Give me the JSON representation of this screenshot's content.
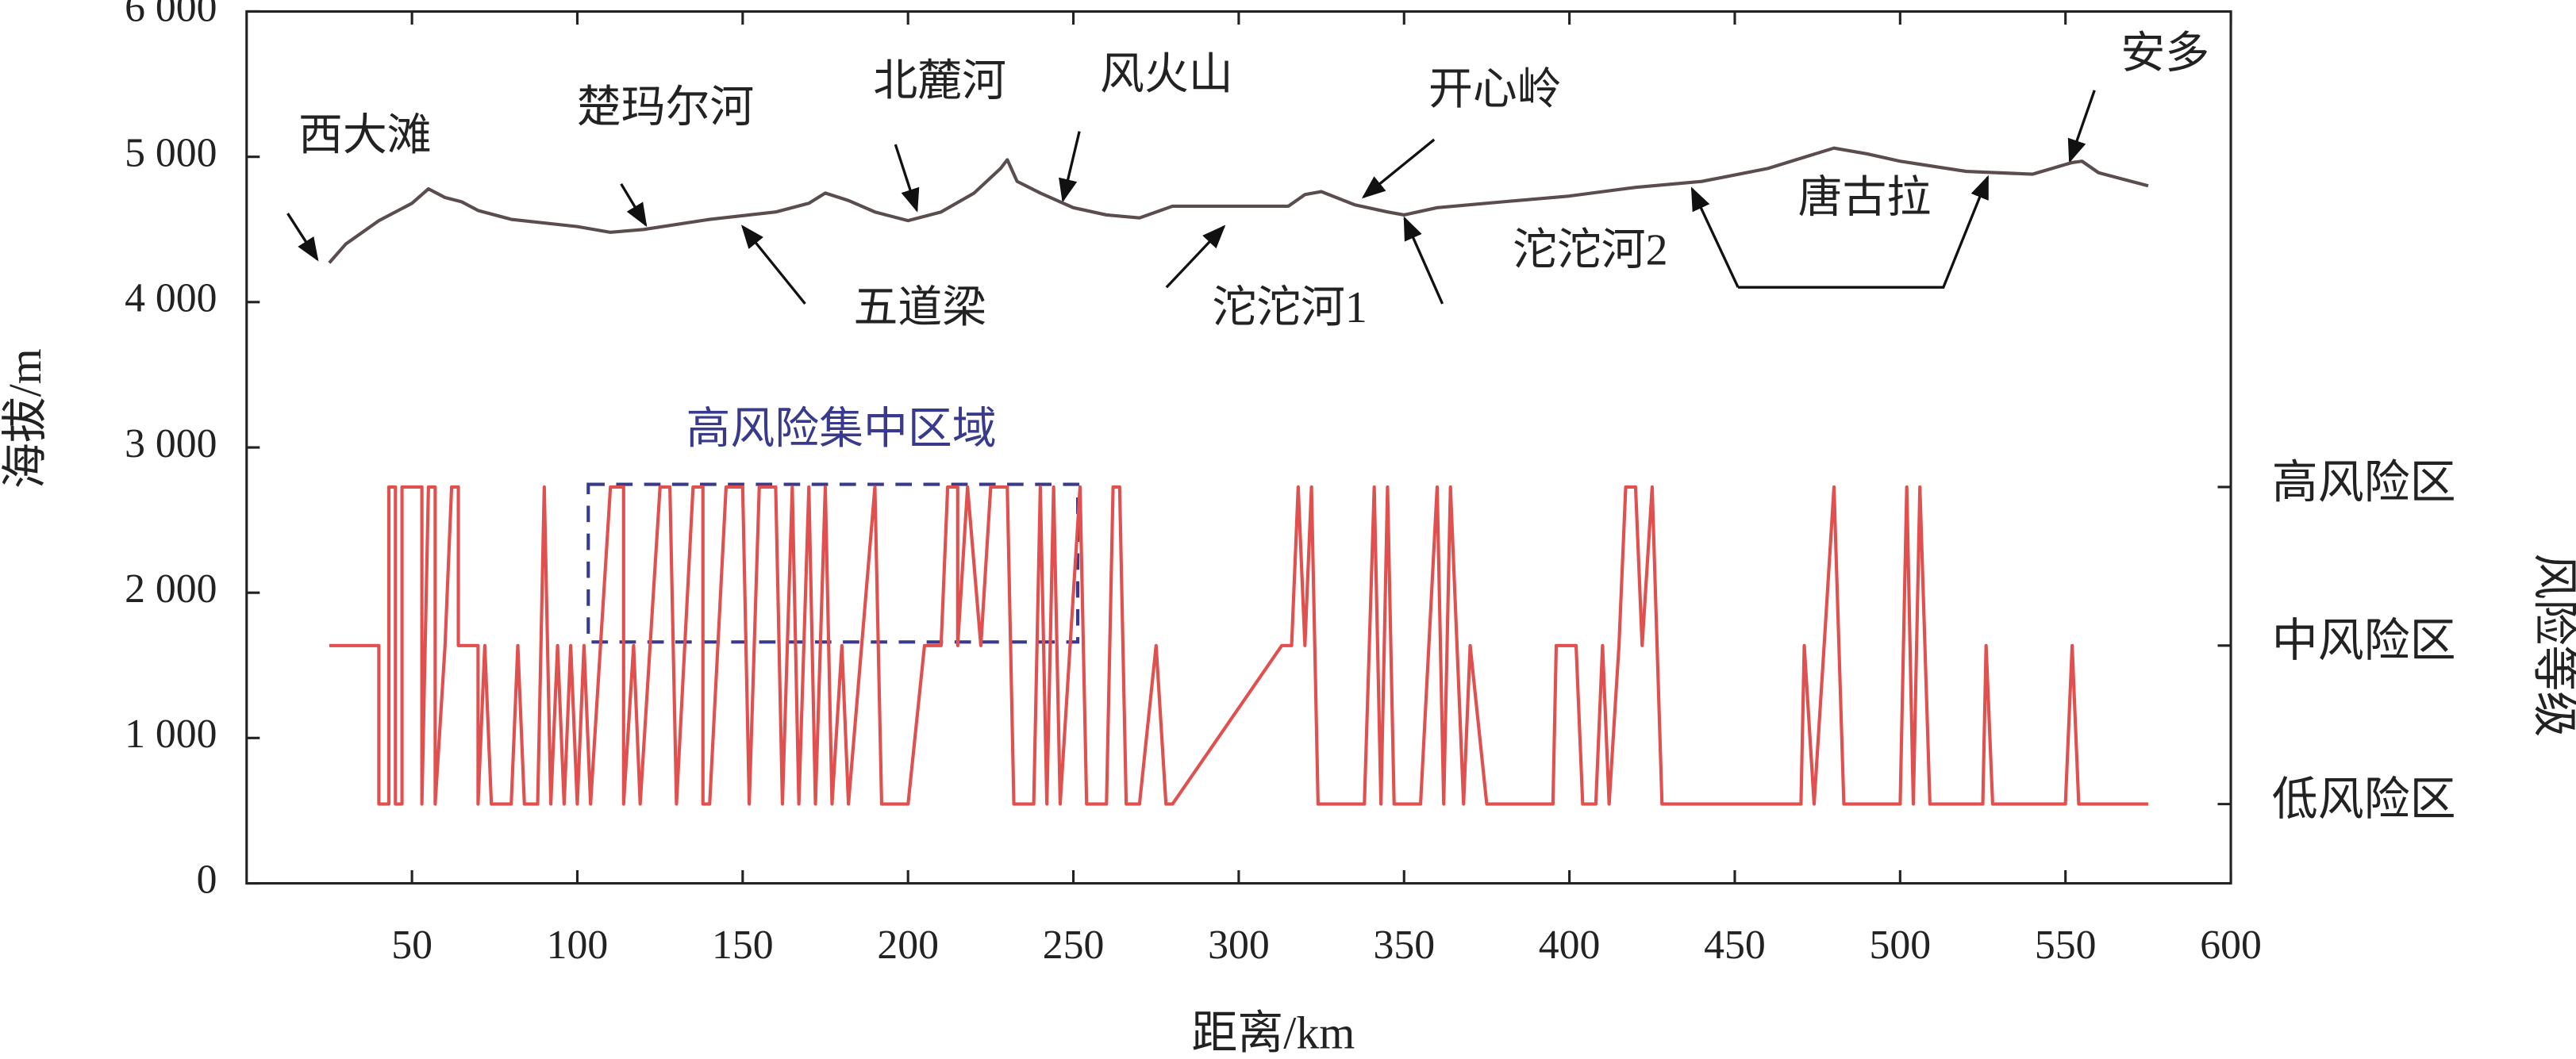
{
  "chart_data": {
    "type": "line",
    "xlabel": "距离/km",
    "ylabel": "海拔/m",
    "y2label": "风险等级",
    "xlim": [
      0,
      600
    ],
    "xticks": [
      50,
      100,
      150,
      200,
      250,
      300,
      350,
      400,
      450,
      500,
      550,
      600
    ],
    "ylim": [
      0,
      6000
    ],
    "yticks": [
      0,
      {
        "value": 1000,
        "label": "1 000"
      },
      {
        "value": 2000,
        "label": "2 000"
      },
      {
        "value": 3000,
        "label": "3 000"
      },
      {
        "value": 4000,
        "label": "4 000"
      },
      {
        "value": 5000,
        "label": "5 000"
      },
      {
        "value": 6000,
        "label": "6 000"
      }
    ],
    "y2lim": [
      0.5,
      6
    ],
    "y2ticks": [
      {
        "value": 1,
        "label": "低风险区"
      },
      {
        "value": 2,
        "label": "中风险区"
      },
      {
        "value": 3,
        "label": "高风险区"
      }
    ],
    "annotations": [
      "西大滩",
      "楚玛尔河",
      "北麓河",
      "风火山",
      "开心岭",
      "安多",
      "五道梁",
      "沱沱河1",
      "沱沱河2",
      "唐古拉",
      "高风险集中区域"
    ],
    "series": [
      {
        "color": "#5a4d4d",
        "x": [
          25,
          30,
          40,
          50,
          55,
          60,
          65,
          70,
          80,
          100,
          110,
          120,
          140,
          160,
          170,
          175,
          182,
          190,
          200,
          210,
          220,
          228,
          230,
          233,
          240,
          250,
          260,
          270,
          280,
          315,
          320,
          325,
          335,
          345,
          350,
          360,
          380,
          400,
          420,
          440,
          460,
          480,
          490,
          500,
          520,
          540,
          552,
          555,
          560,
          575
        ],
        "values": [
          4270,
          4400,
          4560,
          4680,
          4780,
          4720,
          4690,
          4630,
          4570,
          4520,
          4480,
          4500,
          4570,
          4620,
          4680,
          4750,
          4700,
          4620,
          4560,
          4620,
          4750,
          4920,
          4980,
          4830,
          4750,
          4650,
          4600,
          4580,
          4660,
          4660,
          4740,
          4760,
          4670,
          4620,
          4600,
          4650,
          4690,
          4730,
          4790,
          4830,
          4920,
          5060,
          5020,
          4970,
          4900,
          4880,
          4960,
          4970,
          4890,
          4800
        ]
      },
      {
        "color": "#e0504f",
        "axis": "y2",
        "x": [
          25,
          40,
          40,
          43,
          43,
          45,
          45,
          47,
          47,
          53,
          53,
          55,
          57,
          57,
          60,
          62,
          64,
          64,
          70,
          70,
          72,
          74,
          80,
          82,
          84,
          88,
          90,
          92,
          94,
          96,
          98,
          100,
          102,
          104,
          110,
          114,
          114,
          117,
          119,
          125,
          128,
          130,
          135,
          138,
          138,
          140,
          145,
          150,
          152,
          155,
          160,
          162,
          165,
          167,
          170,
          172,
          175,
          177,
          180,
          182,
          190,
          192,
          200,
          205,
          210,
          212,
          215,
          215,
          218,
          222,
          225,
          230,
          232,
          238,
          240,
          242,
          244,
          246,
          252,
          254,
          260,
          262,
          264,
          266,
          270,
          275,
          278,
          280,
          313,
          316,
          318,
          320,
          322,
          324,
          330,
          338,
          341,
          343,
          345,
          347,
          355,
          360,
          362,
          364,
          366,
          368,
          370,
          375,
          395,
          396,
          402,
          404,
          408,
          410,
          412,
          415,
          417,
          420,
          422,
          425,
          428,
          470,
          471,
          474,
          477,
          480,
          483,
          500,
          502,
          504,
          506,
          509,
          525,
          526,
          528,
          550,
          552,
          554,
          575
        ],
        "values": [
          2,
          2,
          1,
          1,
          3,
          3,
          1,
          1,
          3,
          3,
          1,
          3,
          3,
          1,
          2,
          3,
          3,
          2,
          2,
          1,
          2,
          1,
          1,
          2,
          1,
          1,
          3,
          1,
          2,
          1,
          2,
          1,
          2,
          1,
          3,
          3,
          1,
          2,
          1,
          3,
          3,
          1,
          3,
          3,
          1,
          1,
          3,
          3,
          1,
          3,
          3,
          1,
          3,
          1,
          3,
          1,
          3,
          1,
          2,
          1,
          3,
          1,
          1,
          2,
          2,
          3,
          3,
          2,
          3,
          2,
          3,
          3,
          1,
          1,
          3,
          1,
          3,
          1,
          3,
          1,
          1,
          3,
          3,
          1,
          1,
          2,
          1,
          1,
          2,
          2,
          3,
          2,
          3,
          1,
          1,
          1,
          3,
          1,
          3,
          1,
          1,
          3,
          1,
          3,
          2,
          1,
          2,
          1,
          1,
          2,
          2,
          1,
          1,
          2,
          1,
          2,
          3,
          3,
          2,
          3,
          1,
          1,
          2,
          1,
          2,
          3,
          1,
          1,
          3,
          1,
          3,
          1,
          1,
          2,
          1,
          1,
          2,
          1,
          1
        ]
      }
    ]
  }
}
